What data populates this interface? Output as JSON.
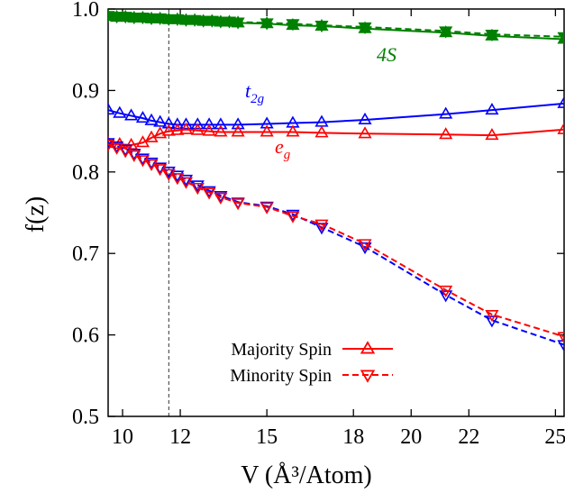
{
  "chart_data": {
    "type": "line",
    "xlabel": "V (Å³/Atom)",
    "ylabel": "f(z)",
    "xlim": [
      9.5,
      25.3
    ],
    "ylim": [
      0.5,
      1.0
    ],
    "xticks": [
      10,
      12,
      15,
      18,
      20,
      22,
      25
    ],
    "yticks": [
      0.5,
      0.6,
      0.7,
      0.8,
      0.9,
      1.0
    ],
    "tick_labels_x": [
      "10",
      "12",
      "15",
      "18",
      "20",
      "22",
      "25"
    ],
    "tick_labels_y": [
      "0.5",
      "0.6",
      "0.7",
      "0.8",
      "0.9",
      "1.0"
    ],
    "vline_x": 11.6,
    "legend": {
      "position": "bottom-left",
      "entries": [
        {
          "label": "Majority Spin",
          "marker": "triangle-up",
          "line": "solid"
        },
        {
          "label": "Minority Spin",
          "marker": "triangle-down",
          "line": "dashed"
        }
      ]
    },
    "colors": {
      "4S": "#008000",
      "t2g": "#0000ff",
      "eg": "#ff0000"
    },
    "annotations": [
      {
        "series": "4S",
        "text": "4S",
        "sub": ""
      },
      {
        "series": "t2g",
        "text": "t",
        "sub": "2g"
      },
      {
        "series": "eg",
        "text": "e",
        "sub": "g"
      }
    ],
    "series": [
      {
        "orbital": "4S",
        "spin": "majority",
        "x": [
          9.5,
          9.8,
          10.1,
          10.4,
          10.7,
          11.0,
          11.3,
          11.6,
          11.9,
          12.2,
          12.5,
          12.8,
          13.1,
          13.4,
          13.7,
          14.0,
          15.0,
          15.9,
          16.9,
          18.4,
          21.2,
          22.8,
          25.3
        ],
        "y": [
          0.991,
          0.99,
          0.99,
          0.989,
          0.989,
          0.988,
          0.988,
          0.987,
          0.987,
          0.986,
          0.986,
          0.985,
          0.985,
          0.984,
          0.984,
          0.983,
          0.982,
          0.98,
          0.979,
          0.976,
          0.971,
          0.967,
          0.963
        ]
      },
      {
        "orbital": "4S",
        "spin": "minority",
        "x": [
          9.5,
          9.8,
          10.1,
          10.4,
          10.7,
          11.0,
          11.3,
          11.6,
          11.9,
          12.2,
          12.5,
          12.8,
          13.1,
          13.4,
          13.7,
          14.0,
          15.0,
          15.9,
          16.9,
          18.4,
          21.2,
          22.8,
          25.3
        ],
        "y": [
          0.992,
          0.991,
          0.991,
          0.99,
          0.99,
          0.989,
          0.989,
          0.988,
          0.988,
          0.987,
          0.987,
          0.986,
          0.986,
          0.985,
          0.985,
          0.984,
          0.983,
          0.982,
          0.98,
          0.978,
          0.973,
          0.969,
          0.966
        ]
      },
      {
        "orbital": "t2g",
        "spin": "majority",
        "x": [
          9.5,
          9.9,
          10.3,
          10.7,
          11.0,
          11.3,
          11.6,
          11.9,
          12.2,
          12.6,
          13.0,
          13.4,
          14.0,
          15.0,
          15.9,
          16.9,
          18.4,
          21.2,
          22.8,
          25.3
        ],
        "y": [
          0.876,
          0.872,
          0.869,
          0.866,
          0.863,
          0.861,
          0.859,
          0.858,
          0.858,
          0.858,
          0.858,
          0.858,
          0.858,
          0.859,
          0.86,
          0.861,
          0.864,
          0.871,
          0.876,
          0.884
        ]
      },
      {
        "orbital": "eg",
        "spin": "majority",
        "x": [
          9.5,
          9.9,
          10.3,
          10.7,
          11.0,
          11.3,
          11.6,
          11.9,
          12.2,
          12.6,
          13.0,
          13.4,
          14.0,
          15.0,
          15.9,
          16.9,
          18.4,
          21.2,
          22.8,
          25.3
        ],
        "y": [
          0.835,
          0.834,
          0.833,
          0.836,
          0.842,
          0.847,
          0.85,
          0.851,
          0.852,
          0.851,
          0.85,
          0.849,
          0.849,
          0.849,
          0.849,
          0.848,
          0.847,
          0.846,
          0.845,
          0.852
        ]
      },
      {
        "orbital": "t2g",
        "spin": "minority",
        "x": [
          9.5,
          9.8,
          10.1,
          10.4,
          10.7,
          11.0,
          11.3,
          11.6,
          11.9,
          12.2,
          12.6,
          13.0,
          13.4,
          14.0,
          15.0,
          15.9,
          16.9,
          18.4,
          21.2,
          22.8,
          25.3
        ],
        "y": [
          0.836,
          0.832,
          0.828,
          0.823,
          0.817,
          0.812,
          0.806,
          0.801,
          0.796,
          0.791,
          0.784,
          0.777,
          0.771,
          0.763,
          0.758,
          0.748,
          0.732,
          0.708,
          0.649,
          0.618,
          0.588
        ]
      },
      {
        "orbital": "eg",
        "spin": "minority",
        "x": [
          9.5,
          9.8,
          10.1,
          10.4,
          10.7,
          11.0,
          11.3,
          11.6,
          11.9,
          12.2,
          12.6,
          13.0,
          13.4,
          14.0,
          15.0,
          15.9,
          16.9,
          18.4,
          21.2,
          22.8,
          25.3
        ],
        "y": [
          0.834,
          0.83,
          0.826,
          0.821,
          0.815,
          0.81,
          0.804,
          0.798,
          0.793,
          0.788,
          0.781,
          0.775,
          0.769,
          0.762,
          0.757,
          0.746,
          0.736,
          0.712,
          0.655,
          0.625,
          0.598
        ]
      }
    ]
  }
}
